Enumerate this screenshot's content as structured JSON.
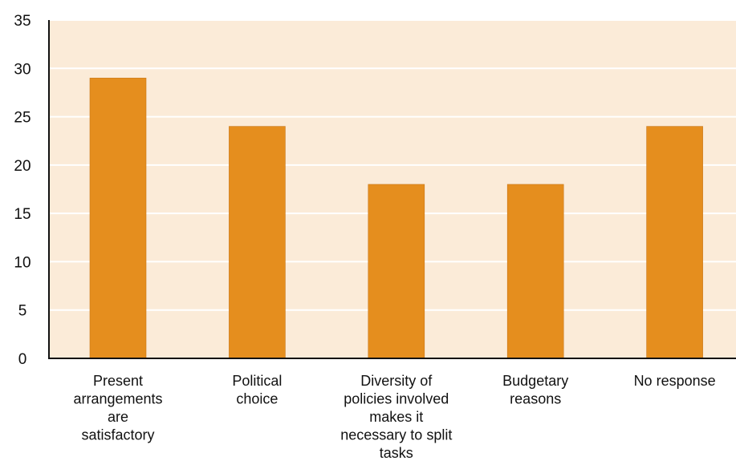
{
  "chart_data": {
    "type": "bar",
    "categories": [
      [
        "Present",
        "arrangements",
        "are",
        "satisfactory"
      ],
      [
        "Political",
        "choice"
      ],
      [
        "Diversity of",
        "policies involved",
        "makes it",
        "necessary to split",
        "tasks"
      ],
      [
        "Budgetary",
        "reasons"
      ],
      [
        "No response"
      ]
    ],
    "values": [
      29,
      24,
      18,
      18,
      24
    ],
    "ylim": [
      0,
      35
    ],
    "yticks": [
      0,
      5,
      10,
      15,
      20,
      25,
      30,
      35
    ],
    "grid": true,
    "colors": {
      "bar": "#E58E1E",
      "plot_background": "#FBEBD8",
      "grid": "#FFFFFF",
      "axis": "#111111"
    }
  }
}
